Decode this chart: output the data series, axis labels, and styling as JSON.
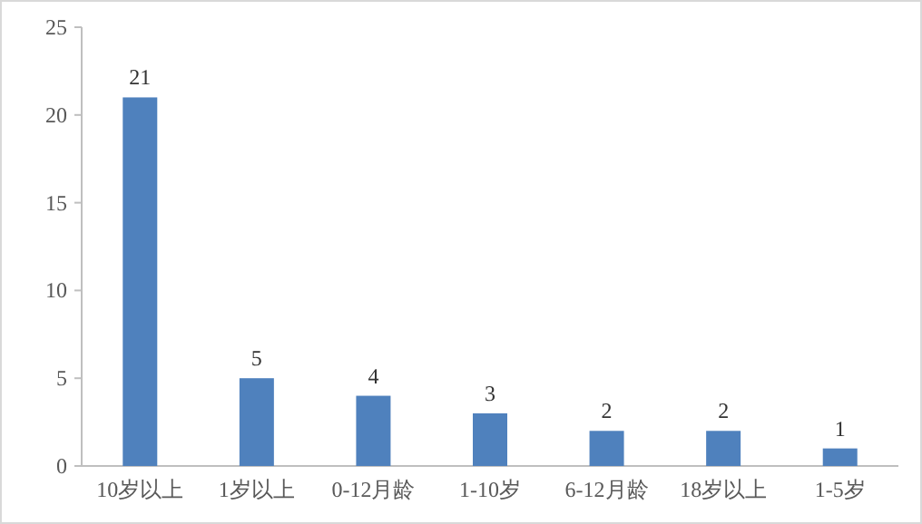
{
  "chart_data": {
    "type": "bar",
    "categories": [
      "10岁以上",
      "1岁以上",
      "0-12月龄",
      "1-10岁",
      "6-12月龄",
      "18岁以上",
      "1-5岁"
    ],
    "values": [
      21,
      5,
      4,
      3,
      2,
      2,
      1
    ],
    "color": "#4f81bd",
    "ylim": [
      0,
      25
    ],
    "yticks": [
      0,
      5,
      10,
      15,
      20,
      25
    ],
    "data_labels": true
  }
}
